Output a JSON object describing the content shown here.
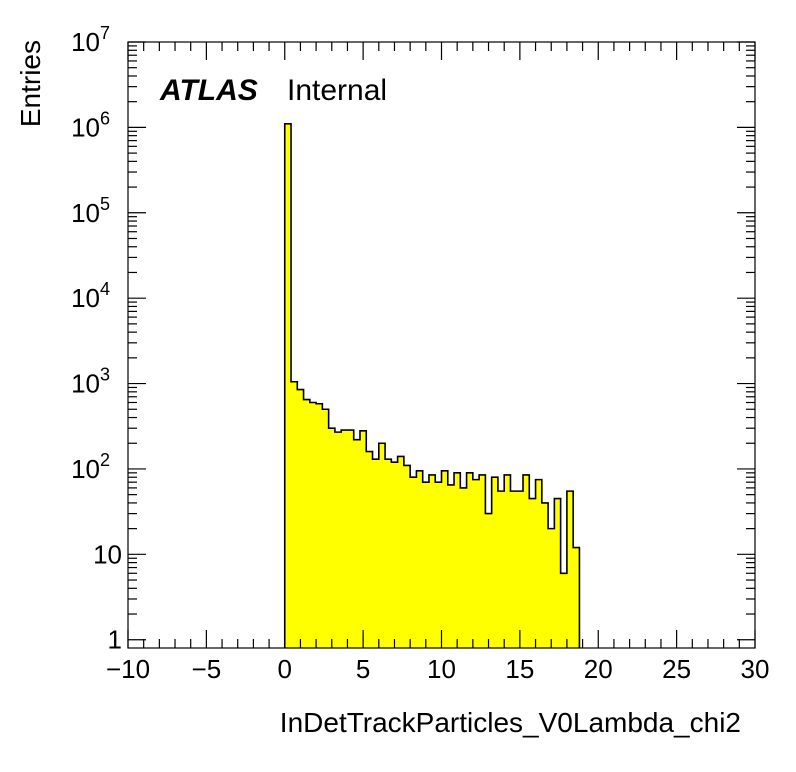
{
  "chart_data": {
    "type": "bar",
    "style": "histogram",
    "fill_color": "#ffff00",
    "line_color": "#000000",
    "xlabel": "InDetTrackParticles_V0Lambda_chi2",
    "ylabel": "Entries",
    "xlim": [
      -10,
      30
    ],
    "ylim": [
      0.8,
      10000000
    ],
    "y_scale": "log",
    "bin_width": 0.4,
    "bin_start": 0,
    "values": [
      1100000,
      1050,
      850,
      650,
      600,
      580,
      500,
      300,
      270,
      285,
      285,
      220,
      280,
      160,
      130,
      200,
      130,
      120,
      140,
      110,
      80,
      95,
      70,
      85,
      70,
      95,
      65,
      90,
      60,
      90,
      75,
      85,
      30,
      80,
      55,
      85,
      55,
      55,
      85,
      45,
      75,
      40,
      20,
      45,
      6,
      55,
      12
    ],
    "annotations": {
      "atlas": "ATLAS",
      "internal": "Internal"
    },
    "x_ticks": [
      {
        "v": -10,
        "label": "−10"
      },
      {
        "v": -5,
        "label": "−5"
      },
      {
        "v": 0,
        "label": "0"
      },
      {
        "v": 5,
        "label": "5"
      },
      {
        "v": 10,
        "label": "10"
      },
      {
        "v": 15,
        "label": "15"
      },
      {
        "v": 20,
        "label": "20"
      },
      {
        "v": 25,
        "label": "25"
      },
      {
        "v": 30,
        "label": "30"
      }
    ],
    "y_ticks": [
      {
        "v": 1,
        "base": "1",
        "exp": ""
      },
      {
        "v": 10,
        "base": "10",
        "exp": ""
      },
      {
        "v": 100,
        "base": "10",
        "exp": "2"
      },
      {
        "v": 1000,
        "base": "10",
        "exp": "3"
      },
      {
        "v": 10000,
        "base": "10",
        "exp": "4"
      },
      {
        "v": 100000,
        "base": "10",
        "exp": "5"
      },
      {
        "v": 1000000,
        "base": "10",
        "exp": "6"
      },
      {
        "v": 10000000,
        "base": "10",
        "exp": "7"
      }
    ]
  }
}
